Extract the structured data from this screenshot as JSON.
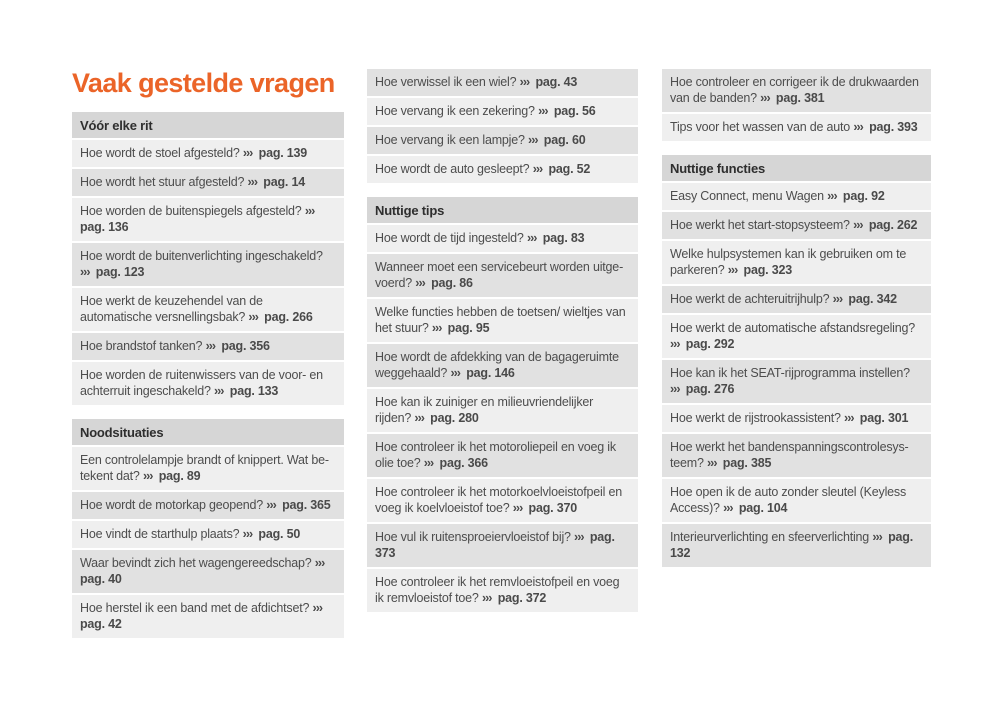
{
  "title": "Vaak gestelde vragen",
  "arrow": "›››",
  "colors": {
    "title": "#eb6428",
    "header_bg": "#d6d6d6",
    "row_light": "#efefef",
    "row_dark": "#e1e1e1",
    "text": "#4d4d4d",
    "ref": "#4a4a4a"
  },
  "columns": [
    {
      "blocks": [
        {
          "type": "header",
          "label": "Vóór elke rit"
        },
        {
          "type": "item",
          "shade": "light",
          "q": "Hoe wordt de stoel afgesteld?",
          "ref": "pag. 139"
        },
        {
          "type": "item",
          "shade": "dark",
          "q": "Hoe wordt het stuur afgesteld?",
          "ref": "pag. 14"
        },
        {
          "type": "item",
          "shade": "light",
          "q": "Hoe worden de buitenspiegels afgesteld?",
          "ref": "pag. 136"
        },
        {
          "type": "item",
          "shade": "dark",
          "q": "Hoe wordt de buitenverlichting ingeschakeld?",
          "ref": "pag. 123"
        },
        {
          "type": "item",
          "shade": "light",
          "q": "Hoe werkt de keuzehendel van de automatische versnellingsbak?",
          "ref": "pag. 266"
        },
        {
          "type": "item",
          "shade": "dark",
          "q": "Hoe brandstof tanken?",
          "ref": "pag. 356"
        },
        {
          "type": "item",
          "shade": "light",
          "q": "Hoe worden de ruitenwissers van de voor- en achterruit ingeschakeld?",
          "ref": "pag. 133"
        },
        {
          "type": "header",
          "label": "Noodsituaties"
        },
        {
          "type": "item",
          "shade": "light",
          "q": "Een controlelampje brandt of knippert. Wat be­tekent dat?",
          "ref": "pag. 89"
        },
        {
          "type": "item",
          "shade": "dark",
          "q": "Hoe wordt de motorkap geopend?",
          "ref": "pag. 365"
        },
        {
          "type": "item",
          "shade": "light",
          "q": "Hoe vindt de starthulp plaats?",
          "ref": "pag. 50"
        },
        {
          "type": "item",
          "shade": "dark",
          "q": "Waar bevindt zich het wagengereedschap?",
          "ref": "pag. 40"
        },
        {
          "type": "item",
          "shade": "light",
          "q": "Hoe herstel ik een band met de afdichtset?",
          "ref": "pag. 42"
        }
      ]
    },
    {
      "blocks": [
        {
          "type": "item",
          "shade": "dark",
          "q": "Hoe verwissel ik een wiel?",
          "ref": "pag. 43"
        },
        {
          "type": "item",
          "shade": "light",
          "q": "Hoe vervang ik een zekering?",
          "ref": "pag. 56"
        },
        {
          "type": "item",
          "shade": "dark",
          "q": "Hoe vervang ik een lampje?",
          "ref": "pag. 60"
        },
        {
          "type": "item",
          "shade": "light",
          "q": "Hoe wordt de auto gesleept?",
          "ref": "pag. 52"
        },
        {
          "type": "header",
          "label": "Nuttige tips"
        },
        {
          "type": "item",
          "shade": "light",
          "q": "Hoe wordt de tijd ingesteld?",
          "ref": "pag. 83"
        },
        {
          "type": "item",
          "shade": "dark",
          "q": "Wanneer moet een servicebeurt worden uitge­voerd?",
          "ref": "pag. 86"
        },
        {
          "type": "item",
          "shade": "light",
          "q": "Welke functies hebben de toetsen/ wieltjes van het stuur?",
          "ref": "pag. 95"
        },
        {
          "type": "item",
          "shade": "dark",
          "q": "Hoe wordt de afdekking van de bagageruimte weggehaald?",
          "ref": "pag. 146"
        },
        {
          "type": "item",
          "shade": "light",
          "q": "Hoe kan ik zuiniger en milieuvriendelijker rijden?",
          "ref": "pag. 280"
        },
        {
          "type": "item",
          "shade": "dark",
          "q": "Hoe controleer ik het motoroliepeil en voeg ik olie toe?",
          "ref": "pag. 366"
        },
        {
          "type": "item",
          "shade": "light",
          "q": "Hoe controleer ik het motorkoelvloeistofpeil en voeg ik koelvloeistof toe?",
          "ref": "pag. 370"
        },
        {
          "type": "item",
          "shade": "dark",
          "q": "Hoe vul ik ruitensproeiervloeistof bij?",
          "ref": "pag. 373"
        },
        {
          "type": "item",
          "shade": "light",
          "q": "Hoe controleer ik het remvloeistofpeil en voeg ik remvloeistof toe?",
          "ref": "pag. 372"
        }
      ]
    },
    {
      "blocks": [
        {
          "type": "item",
          "shade": "dark",
          "q": "Hoe controleer en corrigeer ik de drukwaarden van de banden?",
          "ref": "pag. 381"
        },
        {
          "type": "item",
          "shade": "light",
          "q": "Tips voor het wassen van de auto",
          "ref": "pag. 393"
        },
        {
          "type": "header",
          "label": "Nuttige functies"
        },
        {
          "type": "item",
          "shade": "light",
          "q": "Easy Connect, menu Wagen",
          "ref": "pag. 92"
        },
        {
          "type": "item",
          "shade": "dark",
          "q": "Hoe werkt het start-stopsysteem?",
          "ref": "pag. 262"
        },
        {
          "type": "item",
          "shade": "light",
          "q": "Welke hulpsystemen kan ik gebruiken om te par­keren?",
          "ref": "pag. 323"
        },
        {
          "type": "item",
          "shade": "dark",
          "q": "Hoe werkt de achteruitrijhulp?",
          "ref": "pag. 342"
        },
        {
          "type": "item",
          "shade": "light",
          "q": "Hoe werkt de automatische afstandsregeling?",
          "ref": "pag. 292"
        },
        {
          "type": "item",
          "shade": "dark",
          "q": "Hoe kan ik het SEAT-rijprogramma instellen?",
          "ref": "pag. 276"
        },
        {
          "type": "item",
          "shade": "light",
          "q": "Hoe werkt de rijstrookassistent?",
          "ref": "pag. 301"
        },
        {
          "type": "item",
          "shade": "dark",
          "q": "Hoe werkt het bandenspanningscontrolesys­teem?",
          "ref": "pag. 385"
        },
        {
          "type": "item",
          "shade": "light",
          "q": "Hoe open ik de auto zonder sleutel (Keyless Ac­cess)?",
          "ref": "pag. 104"
        },
        {
          "type": "item",
          "shade": "dark",
          "q": "Interieurverlichting en sfeerverlichting",
          "ref": "pag. 132"
        }
      ]
    }
  ]
}
